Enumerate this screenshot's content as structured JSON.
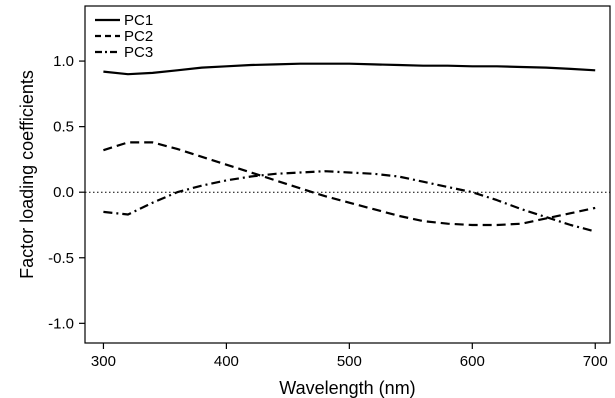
{
  "chart_data": {
    "type": "line",
    "title": "",
    "xlabel": "Wavelength (nm)",
    "ylabel": "Factor loading coefficients",
    "xlim": [
      285,
      712
    ],
    "ylim": [
      -1.15,
      1.42
    ],
    "x_ticks": [
      300,
      400,
      500,
      600,
      700
    ],
    "y_ticks": [
      -1.0,
      -0.5,
      0.0,
      0.5,
      1.0
    ],
    "x_tick_labels": [
      "300",
      "400",
      "500",
      "600",
      "700"
    ],
    "y_tick_labels": [
      "-1.0",
      "-0.5",
      "0.0",
      "0.5",
      "1.0"
    ],
    "grid": false,
    "reference_line": {
      "y": 0.0,
      "style": "dotted"
    },
    "legend_position": "top-left",
    "series": [
      {
        "name": "PC1",
        "dash": "solid",
        "x": [
          300,
          320,
          340,
          360,
          380,
          400,
          420,
          440,
          460,
          480,
          500,
          520,
          540,
          560,
          580,
          600,
          620,
          640,
          660,
          680,
          700
        ],
        "y": [
          0.92,
          0.9,
          0.91,
          0.93,
          0.95,
          0.96,
          0.97,
          0.975,
          0.98,
          0.98,
          0.98,
          0.975,
          0.97,
          0.965,
          0.965,
          0.96,
          0.96,
          0.955,
          0.95,
          0.94,
          0.93
        ]
      },
      {
        "name": "PC2",
        "dash": "dashed",
        "x": [
          300,
          320,
          340,
          360,
          380,
          400,
          420,
          440,
          460,
          480,
          500,
          520,
          540,
          560,
          580,
          600,
          620,
          640,
          660,
          680,
          700
        ],
        "y": [
          0.32,
          0.38,
          0.38,
          0.33,
          0.27,
          0.21,
          0.15,
          0.09,
          0.03,
          -0.03,
          -0.08,
          -0.13,
          -0.18,
          -0.22,
          -0.24,
          -0.25,
          -0.25,
          -0.24,
          -0.2,
          -0.16,
          -0.12
        ]
      },
      {
        "name": "PC3",
        "dash": "dashdot",
        "x": [
          300,
          320,
          340,
          360,
          380,
          400,
          420,
          440,
          460,
          480,
          500,
          520,
          540,
          560,
          580,
          600,
          620,
          640,
          660,
          680,
          700
        ],
        "y": [
          -0.15,
          -0.17,
          -0.08,
          0.0,
          0.05,
          0.09,
          0.12,
          0.14,
          0.15,
          0.16,
          0.15,
          0.14,
          0.12,
          0.08,
          0.04,
          0.0,
          -0.06,
          -0.13,
          -0.19,
          -0.25,
          -0.3
        ]
      }
    ]
  }
}
